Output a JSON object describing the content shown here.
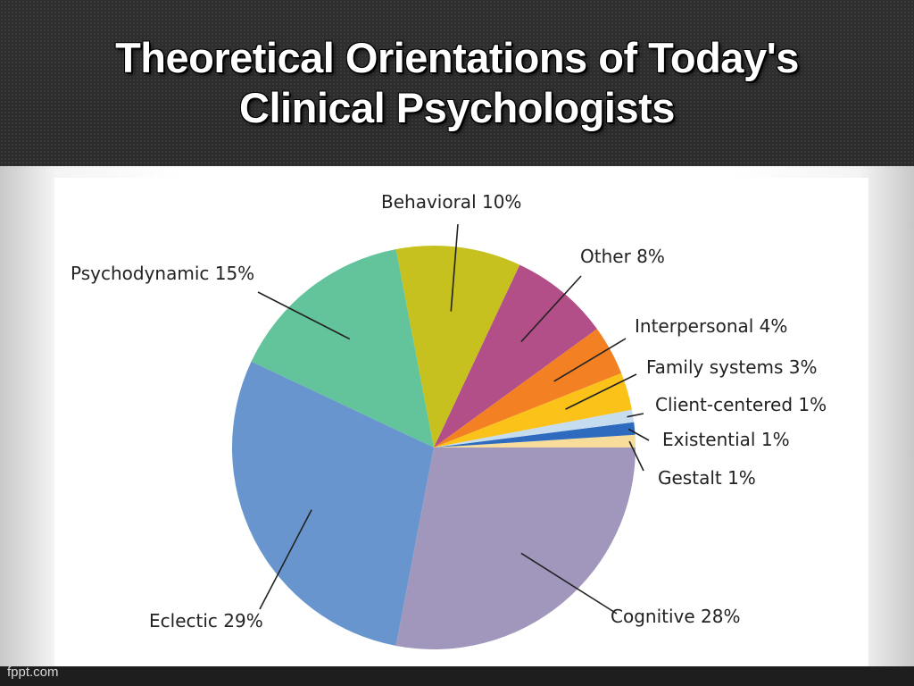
{
  "slide": {
    "title_lines": [
      "Theoretical Orientations of Today's",
      "Clinical Psychologists"
    ],
    "footer": "fppt.com"
  },
  "chart_data": {
    "type": "pie",
    "title": "",
    "start_angle_deg": 90,
    "direction": "counterclockwise",
    "slices": [
      {
        "name": "Gestalt",
        "value": 1,
        "label": "Gestalt 1%",
        "color": "#f7dc9c"
      },
      {
        "name": "Existential",
        "value": 1,
        "label": "Existential 1%",
        "color": "#2e6bbf"
      },
      {
        "name": "Client-centered",
        "value": 1,
        "label": "Client-centered 1%",
        "color": "#c6dcef"
      },
      {
        "name": "Family systems",
        "value": 3,
        "label": "Family systems 3%",
        "color": "#fbc21a"
      },
      {
        "name": "Interpersonal",
        "value": 4,
        "label": "Interpersonal 4%",
        "color": "#f38124"
      },
      {
        "name": "Other",
        "value": 8,
        "label": "Other 8%",
        "color": "#b24e88"
      },
      {
        "name": "Behavioral",
        "value": 10,
        "label": "Behavioral 10%",
        "color": "#c6c11f"
      },
      {
        "name": "Psychodynamic",
        "value": 15,
        "label": "Psychodynamic 15%",
        "color": "#63c39b"
      },
      {
        "name": "Eclectic",
        "value": 29,
        "label": "Eclectic 29%",
        "color": "#6995cf"
      },
      {
        "name": "Cognitive",
        "value": 28,
        "label": "Cognitive 28%",
        "color": "#a197bc"
      }
    ]
  }
}
